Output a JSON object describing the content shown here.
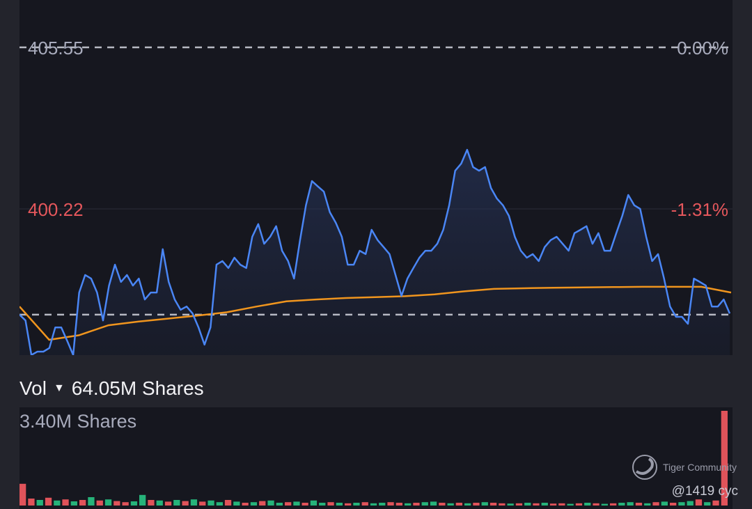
{
  "price_axis": {
    "top_price": "405.55",
    "top_pct": "0.00%",
    "mid_price": "400.22",
    "mid_pct": "-1.31%"
  },
  "volume": {
    "label": "Vol",
    "total": "64.05M Shares",
    "max_label": "3.40M Shares"
  },
  "watermark": {
    "brand": "Tiger Community",
    "user": "@1419 cyc"
  },
  "colors": {
    "price_line": "#4a86f5",
    "avg_line": "#f0951e",
    "up": "#26b37a",
    "down": "#e0535a",
    "neutral_text": "#a8abbc",
    "negative_text": "#e5575c"
  },
  "chart_data": [
    {
      "type": "line",
      "ylim": [
        395.4,
        405.55
      ],
      "reference_lines": [
        405.55,
        396.73
      ],
      "yticks": [
        {
          "value": 405.55,
          "pct": "0.00%"
        },
        {
          "value": 400.22,
          "pct": "-1.31%"
        }
      ],
      "series": [
        {
          "values": [
            396.73,
            396.54,
            395.4,
            395.51,
            395.51,
            395.63,
            396.31,
            396.31,
            395.86,
            395.4,
            397.46,
            398.04,
            397.92,
            397.46,
            396.54,
            397.69,
            398.38,
            397.81,
            398.04,
            397.69,
            397.92,
            397.23,
            397.46,
            397.46,
            398.89,
            397.81,
            397.23,
            396.89,
            397.0,
            396.77,
            396.31,
            395.74,
            396.31,
            398.38,
            398.5,
            398.27,
            398.61,
            398.38,
            398.27,
            399.3,
            399.72,
            399.07,
            399.3,
            399.65,
            398.84,
            398.5,
            397.92,
            399.19,
            400.34,
            401.14,
            400.96,
            400.79,
            400.11,
            399.76,
            399.3,
            398.38,
            398.38,
            398.84,
            398.73,
            399.53,
            399.19,
            398.96,
            398.73,
            398.04,
            397.35,
            397.92,
            398.27,
            398.61,
            398.84,
            398.84,
            399.07,
            399.53,
            400.34,
            401.48,
            401.71,
            402.17,
            401.6,
            401.48,
            401.6,
            400.91,
            400.56,
            400.34,
            399.99,
            399.3,
            398.84,
            398.61,
            398.73,
            398.5,
            398.96,
            399.19,
            399.3,
            399.07,
            398.84,
            399.42,
            399.53,
            399.65,
            399.07,
            399.42,
            398.84,
            398.84,
            399.42,
            399.99,
            400.68,
            400.34,
            400.22,
            399.3,
            398.5,
            398.73,
            397.92,
            397.0,
            396.66,
            396.66,
            396.43,
            397.92,
            397.81,
            397.69,
            397.0,
            397.0,
            397.23,
            396.77
          ]
        },
        {
          "values": [
            397.0,
            395.9,
            396.05,
            396.38,
            396.5,
            396.6,
            396.7,
            396.81,
            397.0,
            397.17,
            397.23,
            397.28,
            397.31,
            397.34,
            397.4,
            397.5,
            397.58,
            397.6,
            397.62,
            397.63,
            397.64,
            397.65,
            397.65,
            397.65,
            397.46
          ]
        }
      ]
    },
    {
      "type": "bar",
      "unit": "M Shares",
      "ylim": [
        0,
        3.4
      ],
      "values": [
        0.78,
        0.25,
        0.2,
        0.28,
        0.18,
        0.22,
        0.15,
        0.2,
        0.3,
        0.18,
        0.22,
        0.16,
        0.12,
        0.15,
        0.38,
        0.2,
        0.18,
        0.14,
        0.2,
        0.16,
        0.22,
        0.14,
        0.18,
        0.12,
        0.2,
        0.14,
        0.1,
        0.12,
        0.16,
        0.18,
        0.1,
        0.12,
        0.14,
        0.1,
        0.18,
        0.1,
        0.12,
        0.1,
        0.08,
        0.1,
        0.12,
        0.08,
        0.1,
        0.12,
        0.1,
        0.08,
        0.1,
        0.12,
        0.14,
        0.1,
        0.08,
        0.1,
        0.08,
        0.1,
        0.12,
        0.1,
        0.08,
        0.07,
        0.08,
        0.1,
        0.08,
        0.1,
        0.07,
        0.08,
        0.06,
        0.08,
        0.1,
        0.08,
        0.06,
        0.08,
        0.1,
        0.12,
        0.1,
        0.08,
        0.12,
        0.14,
        0.1,
        0.12,
        0.16,
        0.22,
        0.12,
        0.18,
        3.4
      ],
      "directions": [
        "d",
        "d",
        "u",
        "d",
        "u",
        "d",
        "u",
        "d",
        "u",
        "d",
        "u",
        "d",
        "d",
        "u",
        "u",
        "d",
        "u",
        "d",
        "u",
        "d",
        "u",
        "d",
        "u",
        "u",
        "d",
        "u",
        "d",
        "u",
        "d",
        "u",
        "u",
        "d",
        "u",
        "d",
        "u",
        "u",
        "d",
        "u",
        "d",
        "u",
        "d",
        "u",
        "u",
        "d",
        "d",
        "u",
        "d",
        "u",
        "u",
        "d",
        "u",
        "d",
        "u",
        "d",
        "u",
        "d",
        "d",
        "u",
        "d",
        "u",
        "d",
        "u",
        "d",
        "d",
        "u",
        "d",
        "u",
        "d",
        "u",
        "d",
        "u",
        "u",
        "d",
        "u",
        "d",
        "u",
        "d",
        "u",
        "u",
        "d",
        "u",
        "d",
        "d"
      ]
    }
  ]
}
